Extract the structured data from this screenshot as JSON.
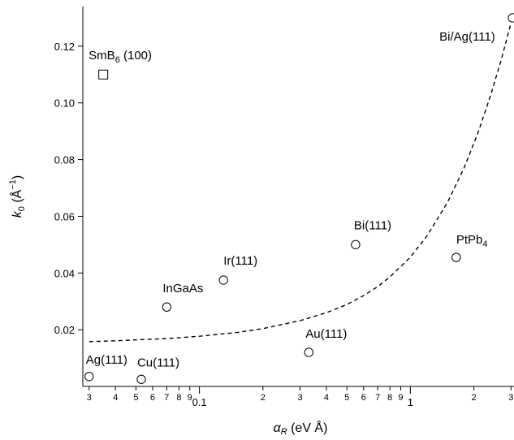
{
  "chart_data": {
    "type": "scatter",
    "title": "",
    "xlabel": {
      "symbol": "α",
      "sub": "R",
      "unit": " (eV Å)"
    },
    "ylabel": {
      "symbol": "k",
      "sub": "0",
      "unit_pre": " (Å",
      "unit_sup": "−1",
      "unit_post": ")"
    },
    "x_scale": "log",
    "xlim": [
      0.028,
      3.1
    ],
    "ylim": [
      0.0,
      0.134
    ],
    "y_ticks": [
      0.02,
      0.04,
      0.06,
      0.08,
      0.1,
      0.12
    ],
    "y_tick_labels": [
      "0.02",
      "0.04",
      "0.06",
      "0.08",
      "0.10",
      "0.12"
    ],
    "x_major_ticks": [
      0.1,
      1
    ],
    "x_major_labels": [
      "0.1",
      "1"
    ],
    "x_minor_ticks": [
      0.03,
      0.04,
      0.05,
      0.06,
      0.07,
      0.08,
      0.09,
      0.2,
      0.3,
      0.4,
      0.5,
      0.6,
      0.7,
      0.8,
      0.9,
      2,
      3
    ],
    "x_minor_labels": [
      "3",
      "4",
      "5",
      "6",
      "7",
      "8",
      "9",
      "2",
      "3",
      "4",
      "5",
      "6",
      "7",
      "8",
      "9",
      "2",
      "3"
    ],
    "grid": false,
    "points": [
      {
        "name": "Ag(111)",
        "x": 0.03,
        "y": 0.0035,
        "marker": "circle"
      },
      {
        "name": "Cu(111)",
        "x": 0.053,
        "y": 0.0025,
        "marker": "circle"
      },
      {
        "name": "InGaAs",
        "x": 0.07,
        "y": 0.028,
        "marker": "circle"
      },
      {
        "name": "Ir(111)",
        "x": 0.13,
        "y": 0.0375,
        "marker": "circle"
      },
      {
        "name": "Au(111)",
        "x": 0.33,
        "y": 0.012,
        "marker": "circle"
      },
      {
        "name": "Bi(111)",
        "x": 0.55,
        "y": 0.05,
        "marker": "circle"
      },
      {
        "name": "PtPb",
        "name_sub": "4",
        "x": 1.65,
        "y": 0.0455,
        "marker": "circle"
      },
      {
        "name": "Bi/Ag(111)",
        "x": 3.05,
        "y": 0.13,
        "marker": "circle"
      },
      {
        "name": "SmB",
        "name_sub": "6",
        "name_suffix": " (100)",
        "x": 0.035,
        "y": 0.11,
        "marker": "square"
      }
    ],
    "fit_curve": {
      "style": "dashed",
      "points": [
        [
          0.03,
          0.0158
        ],
        [
          0.04,
          0.0161
        ],
        [
          0.05,
          0.0164
        ],
        [
          0.07,
          0.0169
        ],
        [
          0.1,
          0.0177
        ],
        [
          0.15,
          0.019
        ],
        [
          0.2,
          0.0204
        ],
        [
          0.3,
          0.0232
        ],
        [
          0.4,
          0.026
        ],
        [
          0.5,
          0.0289
        ],
        [
          0.6,
          0.032
        ],
        [
          0.7,
          0.0352
        ],
        [
          0.8,
          0.0386
        ],
        [
          1.0,
          0.0456
        ],
        [
          1.2,
          0.0531
        ],
        [
          1.5,
          0.0649
        ],
        [
          1.8,
          0.0772
        ],
        [
          2.1,
          0.0898
        ],
        [
          2.4,
          0.1026
        ],
        [
          2.7,
          0.1153
        ],
        [
          3.0,
          0.1282
        ]
      ]
    }
  }
}
